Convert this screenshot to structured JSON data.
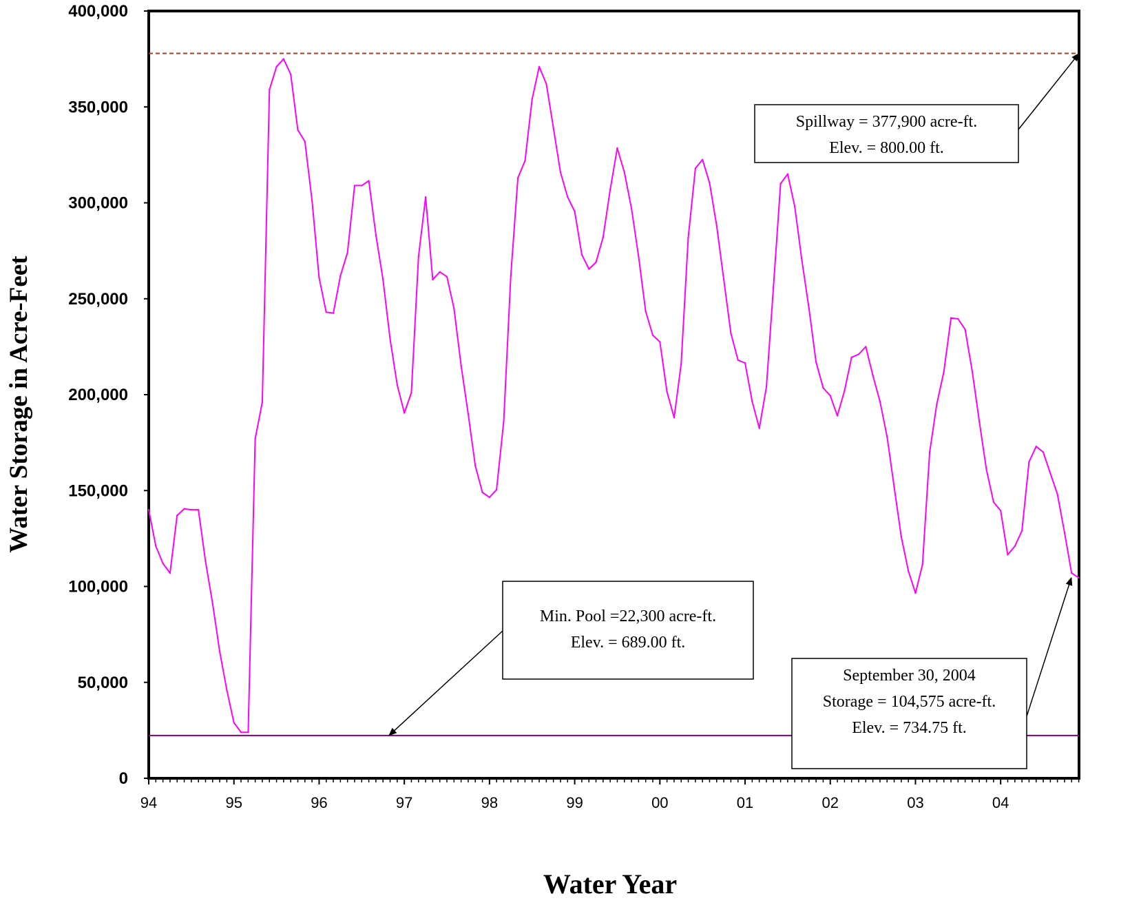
{
  "chart_data": {
    "type": "line",
    "title": "",
    "xlabel": "Water Year",
    "ylabel": "Water Storage in Acre-Feet",
    "ylim": [
      0,
      400000
    ],
    "xlim": [
      1994.0,
      2004.92
    ],
    "yticks": [
      {
        "value": 0,
        "label": "0"
      },
      {
        "value": 50000,
        "label": "50,000"
      },
      {
        "value": 100000,
        "label": "100,000"
      },
      {
        "value": 150000,
        "label": "150,000"
      },
      {
        "value": 200000,
        "label": "200,000"
      },
      {
        "value": 250000,
        "label": "250,000"
      },
      {
        "value": 300000,
        "label": "300,000"
      },
      {
        "value": 350000,
        "label": "350,000"
      },
      {
        "value": 400000,
        "label": "400,000"
      }
    ],
    "xticks": [
      {
        "value": 1994,
        "label": "94"
      },
      {
        "value": 1995,
        "label": "95"
      },
      {
        "value": 1996,
        "label": "96"
      },
      {
        "value": 1997,
        "label": "97"
      },
      {
        "value": 1998,
        "label": "98"
      },
      {
        "value": 1999,
        "label": "99"
      },
      {
        "value": 2000,
        "label": "00"
      },
      {
        "value": 2001,
        "label": "01"
      },
      {
        "value": 2002,
        "label": "02"
      },
      {
        "value": 2003,
        "label": "03"
      },
      {
        "value": 2004,
        "label": "04"
      }
    ],
    "grid": false,
    "legend": "none",
    "reference_lines": [
      {
        "name": "spillway",
        "value": 377900,
        "color": "#b03a1a",
        "style": "dashed"
      },
      {
        "name": "min-pool",
        "value": 22300,
        "color": "#800080",
        "style": "solid"
      }
    ],
    "series": [
      {
        "color": "#ff00ff",
        "x": [
          1994.0,
          1994.083,
          1994.167,
          1994.25,
          1994.333,
          1994.417,
          1994.5,
          1994.583,
          1994.667,
          1994.75,
          1994.833,
          1994.917,
          1995.0,
          1995.083,
          1995.167,
          1995.25,
          1995.333,
          1995.417,
          1995.5,
          1995.583,
          1995.667,
          1995.75,
          1995.833,
          1995.917,
          1996.0,
          1996.083,
          1996.167,
          1996.25,
          1996.333,
          1996.417,
          1996.5,
          1996.583,
          1996.667,
          1996.75,
          1996.833,
          1996.917,
          1997.0,
          1997.083,
          1997.167,
          1997.25,
          1997.333,
          1997.417,
          1997.5,
          1997.583,
          1997.667,
          1997.75,
          1997.833,
          1997.917,
          1998.0,
          1998.083,
          1998.167,
          1998.25,
          1998.333,
          1998.417,
          1998.5,
          1998.583,
          1998.667,
          1998.75,
          1998.833,
          1998.917,
          1999.0,
          1999.083,
          1999.167,
          1999.25,
          1999.333,
          1999.417,
          1999.5,
          1999.583,
          1999.667,
          1999.75,
          1999.833,
          1999.917,
          2000.0,
          2000.083,
          2000.167,
          2000.25,
          2000.333,
          2000.417,
          2000.5,
          2000.583,
          2000.667,
          2000.75,
          2000.833,
          2000.917,
          2001.0,
          2001.083,
          2001.167,
          2001.25,
          2001.333,
          2001.417,
          2001.5,
          2001.583,
          2001.667,
          2001.75,
          2001.833,
          2001.917,
          2002.0,
          2002.083,
          2002.167,
          2002.25,
          2002.333,
          2002.417,
          2002.5,
          2002.583,
          2002.667,
          2002.75,
          2002.833,
          2002.917,
          2003.0,
          2003.083,
          2003.167,
          2003.25,
          2003.333,
          2003.417,
          2003.5,
          2003.583,
          2003.667,
          2003.75,
          2003.833,
          2003.917,
          2004.0,
          2004.083,
          2004.167,
          2004.25,
          2004.333,
          2004.417,
          2004.5,
          2004.583,
          2004.667,
          2004.75,
          2004.833,
          2004.917
        ],
        "values": [
          140000,
          121000,
          112000,
          107000,
          137000,
          140500,
          140000,
          140000,
          113000,
          91000,
          66000,
          46000,
          29000,
          24000,
          24000,
          177000,
          196000,
          359000,
          371000,
          375000,
          367000,
          338000,
          332000,
          301000,
          261000,
          243000,
          242500,
          262000,
          274000,
          309000,
          309000,
          311500,
          283000,
          260000,
          229000,
          205000,
          190500,
          201000,
          272000,
          303000,
          260000,
          264000,
          261500,
          245000,
          215000,
          190000,
          163000,
          149000,
          146500,
          150500,
          186000,
          262000,
          313000,
          322000,
          354000,
          371000,
          362000,
          339000,
          316000,
          303000,
          295500,
          273000,
          265500,
          269000,
          282000,
          307000,
          328500,
          316000,
          297000,
          272000,
          243500,
          231000,
          227500,
          201500,
          188000,
          216000,
          282000,
          318000,
          322500,
          310500,
          288000,
          260000,
          232000,
          218000,
          216500,
          196500,
          182500,
          204000,
          256000,
          310000,
          315000,
          298000,
          270000,
          245000,
          217000,
          203500,
          199500,
          189000,
          202000,
          219500,
          221000,
          225000,
          210000,
          196500,
          178000,
          152000,
          126000,
          108000,
          96500,
          111500,
          170000,
          195000,
          212000,
          240000,
          239500,
          234000,
          212000,
          186000,
          161000,
          144000,
          139500,
          116500,
          121000,
          129000,
          165000,
          173000,
          170000,
          159000,
          148000,
          128000,
          107000,
          104575
        ]
      }
    ],
    "annotations": [
      {
        "name": "spillway",
        "lines": [
          "Spillway = 377,900 acre-ft.",
          "Elev. = 800.00 ft."
        ],
        "target": [
          2004.92,
          377900
        ]
      },
      {
        "name": "min-pool",
        "lines": [
          "Min. Pool =22,300 acre-ft.",
          "Elev. = 689.00 ft."
        ],
        "target": [
          1996.82,
          22300
        ]
      },
      {
        "name": "september",
        "lines": [
          "September 30, 2004",
          "Storage = 104,575 acre-ft.",
          "Elev. = 734.75 ft."
        ],
        "target": [
          2004.83,
          104575
        ]
      }
    ]
  }
}
